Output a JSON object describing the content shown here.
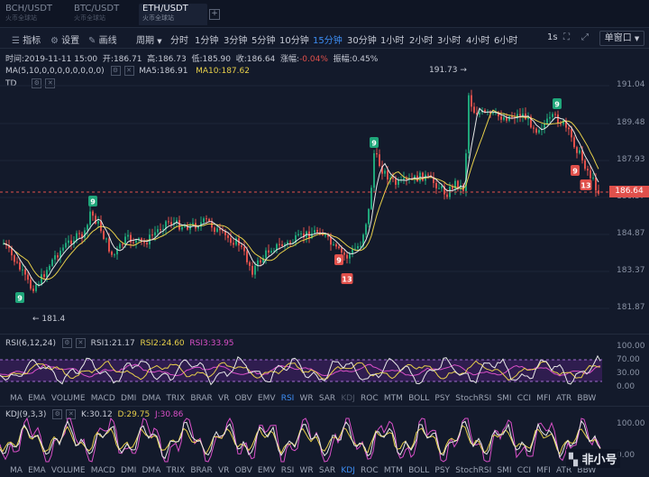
{
  "tabs": [
    {
      "pair": "BCH/USDT",
      "exchange": "火币全球站",
      "active": false
    },
    {
      "pair": "BTC/USDT",
      "exchange": "火币全球站",
      "active": false
    },
    {
      "pair": "ETH/USDT",
      "exchange": "火币全球站",
      "active": true
    }
  ],
  "add_tab": "+",
  "toolbar": {
    "indicator_label": "指标",
    "settings_label": "设置",
    "draw_label": "画线",
    "period_label": "周期",
    "intervals": [
      "分时",
      "1分钟",
      "3分钟",
      "5分钟",
      "10分钟",
      "15分钟",
      "30分钟",
      "1小时",
      "2小时",
      "3小时",
      "4小时",
      "6小时"
    ],
    "active_interval": "15分钟",
    "refresh_label": "1s",
    "window_mode": "单窗口"
  },
  "ohlc": {
    "time_label": "时间:",
    "time": "2019-11-11 15:00",
    "open_label": "开:",
    "open": "186.71",
    "high_label": "高:",
    "high": "186.73",
    "low_label": "低:",
    "low": "185.90",
    "close_label": "收:",
    "close": "186.64",
    "change_label": "涨幅:",
    "change": "-0.04%",
    "amplitude_label": "振幅:",
    "amplitude": "0.45%"
  },
  "ma": {
    "params": "MA(5,10,0,0,0,0,0,0,0,0)",
    "ma5": "MA5:186.91",
    "ma10": "MA10:187.62"
  },
  "td_label": "TD",
  "price_axis": [
    "191.04",
    "189.48",
    "187.93",
    "186.37",
    "184.87",
    "183.37",
    "181.87"
  ],
  "current_price": "186.64",
  "annotations": {
    "high": "191.73",
    "low": "181.4"
  },
  "td_marks": [
    {
      "text": "9",
      "color": "#1fa67a"
    },
    {
      "text": "9",
      "color": "#1fa67a"
    },
    {
      "text": "9",
      "color": "#1fa67a"
    },
    {
      "text": "9",
      "color": "#1fa67a"
    },
    {
      "text": "9",
      "color": "#e0504b"
    },
    {
      "text": "13",
      "color": "#e0504b"
    },
    {
      "text": "9",
      "color": "#e0504b"
    },
    {
      "text": "13",
      "color": "#e0504b"
    }
  ],
  "rsi": {
    "params": "RSI(6,12,24)",
    "rsi1": "RSI1:21.17",
    "rsi2": "RSI2:24.60",
    "rsi3": "RSI3:33.95",
    "axis": [
      "100.00",
      "70.00",
      "30.00",
      "0.00"
    ]
  },
  "indicators": [
    "MA",
    "EMA",
    "VOLUME",
    "MACD",
    "DMI",
    "DMA",
    "TRIX",
    "BRAR",
    "VR",
    "OBV",
    "EMV",
    "RSI",
    "WR",
    "SAR",
    "KDJ",
    "ROC",
    "MTM",
    "BOLL",
    "PSY",
    "StochRSI",
    "SMI",
    "CCI",
    "MFI",
    "ATR",
    "BBW"
  ],
  "indicators_active_1": "RSI",
  "indicators_active_2": "KDJ",
  "kdj": {
    "params": "KDJ(9,3,3)",
    "k": "K:30.12",
    "d": "D:29.75",
    "j": "J:30.86",
    "axis": [
      "100.00",
      "0.00"
    ]
  },
  "watermark": "非小号",
  "colors": {
    "up": "#1fa67a",
    "down": "#e0504b",
    "ma5": "#e8e8e8",
    "ma10": "#e8d04a",
    "active": "#3d8ef5"
  }
}
